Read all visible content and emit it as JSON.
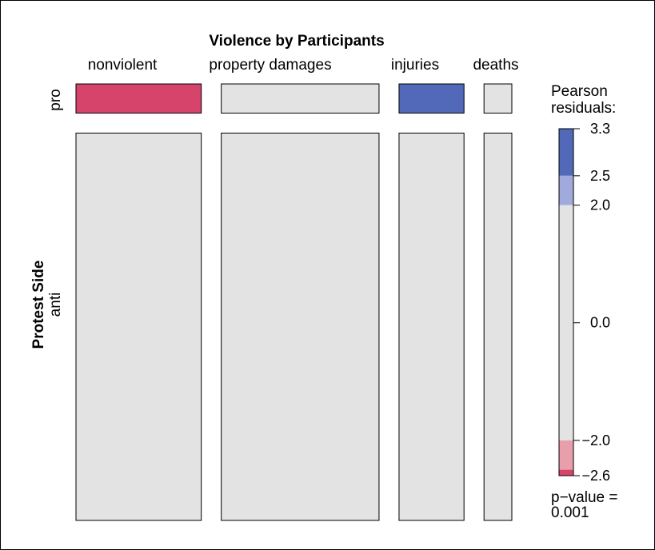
{
  "chart_data": {
    "type": "mosaic",
    "title": "Violence by Participants",
    "row_variable": "Protest Side",
    "column_variable": "Violence by Participants",
    "rows": [
      "pro",
      "anti"
    ],
    "columns": [
      "nonviolent",
      "property damages",
      "injuries",
      "deaths"
    ],
    "row_proportions": [
      0.07,
      0.93
    ],
    "column_proportions": [
      0.27,
      0.34,
      0.14,
      0.06
    ],
    "cell_fill": [
      [
        "#d6436b",
        "#e3e3e3",
        "#5169b8",
        "#e3e3e3"
      ],
      [
        "#e3e3e3",
        "#e3e3e3",
        "#e3e3e3",
        "#e3e3e3"
      ]
    ],
    "legend": {
      "title_line1": "Pearson",
      "title_line2": "residuals:",
      "range": [
        -2.6,
        3.3
      ],
      "ticks": [
        "3.3",
        "2.5",
        "2.0",
        "0.0",
        "−2.0",
        "−2.6"
      ],
      "tick_values": [
        3.3,
        2.5,
        2.0,
        0.0,
        -2.0,
        -2.6
      ],
      "bands": [
        {
          "from": 2.5,
          "to": 3.3,
          "color": "#5169b8"
        },
        {
          "from": 2.0,
          "to": 2.5,
          "color": "#a0aadc"
        },
        {
          "from": -2.0,
          "to": 2.0,
          "color": "#e3e3e3"
        },
        {
          "from": -2.5,
          "to": -2.0,
          "color": "#e89fab"
        },
        {
          "from": -2.6,
          "to": -2.5,
          "color": "#d6436b"
        }
      ],
      "pvalue_line1": "p−value =",
      "pvalue_line2": "0.001"
    }
  }
}
